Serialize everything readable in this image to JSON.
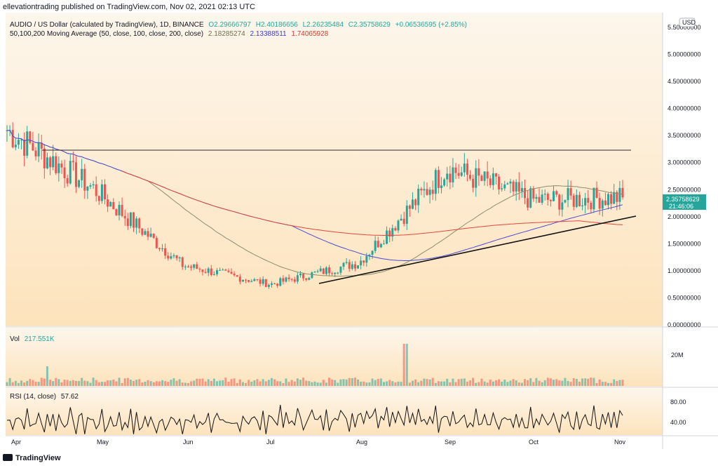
{
  "header": {
    "publisher": "ellevationtrading published on TradingView.com, Nov 02, 2021 02:13 UTC"
  },
  "price_legend": {
    "symbol": "AUDIO / US Dollar (calculated by TradingView), 1D, BINANCE",
    "open": "O2.29666797",
    "high": "H2.40186656",
    "low": "L2.26235484",
    "close": "C2.35758629",
    "change": "+0.06536595 (+2.85%)"
  },
  "ma_legend": {
    "label": "50,100,200 Moving Average (50, close, 100, close, 200, close)",
    "ma50": "2.18285274",
    "ma100": "2.13388511",
    "ma200": "1.74065928"
  },
  "currency_label": "USD",
  "last_price_tag": {
    "price": "2.35758629",
    "countdown": "21:46:06"
  },
  "volume_legend": {
    "label": "Vol",
    "value": "217.551K"
  },
  "rsi_legend": {
    "label": "RSI (14, close)",
    "value": "57.62"
  },
  "footer": {
    "brand": "TradingView"
  },
  "colors": {
    "up": "#26a69a",
    "down": "#ef5350",
    "ma50": "#8d8d6d",
    "ma100": "#4b4bd6",
    "ma200": "#e0463c",
    "background_gradient_top": "#fdf6ec",
    "background_gradient_bottom": "#fde3bc"
  },
  "chart_data": [
    {
      "type": "candlestick",
      "title": "AUDIO / US Dollar",
      "yaxis": {
        "ticks": [
          "5.50000000",
          "5.00000000",
          "4.50000000",
          "4.00000000",
          "3.50000000",
          "3.00000000",
          "2.50000000",
          "2.00000000",
          "1.50000000",
          "1.00000000",
          "0.50000000",
          "0.00000000"
        ],
        "ylim": [
          0,
          5.5
        ]
      },
      "xaxis": {
        "ticks": [
          "Apr",
          "May",
          "Jun",
          "Jul",
          "Aug",
          "Sep",
          "Oct",
          "Nov"
        ]
      },
      "monthly_closes_approx": [
        {
          "x": "Apr",
          "y": 3.6
        },
        {
          "x": "May",
          "y": 2.5
        },
        {
          "x": "Jun",
          "y": 1.1
        },
        {
          "x": "Jul",
          "y": 0.75
        },
        {
          "x": "Aug",
          "y": 1.15
        },
        {
          "x": "Sep",
          "y": 2.9
        },
        {
          "x": "Oct",
          "y": 2.3
        },
        {
          "x": "Nov",
          "y": 2.36
        }
      ],
      "last_close": 2.35758629,
      "annotations": {
        "resistance_line": {
          "from": "Apr",
          "to": "Nov",
          "y": 3.25
        },
        "support_trendline": {
          "from_x": "Jul",
          "from_y": 0.75,
          "to_x": "Nov",
          "to_y": 2.0
        }
      },
      "moving_averages": [
        {
          "name": "MA50",
          "last": 2.18285274
        },
        {
          "name": "MA100",
          "last": 2.13388511
        },
        {
          "name": "MA200",
          "last": 1.74065928
        }
      ],
      "grid": false
    },
    {
      "type": "bar",
      "title": "Vol",
      "yaxis": {
        "ticks": [
          "20M"
        ]
      },
      "last_value": "217.551K",
      "peak_month": "Aug"
    },
    {
      "type": "line",
      "title": "RSI (14, close)",
      "yaxis": {
        "ticks": [
          "80.00",
          "40.00"
        ]
      },
      "last_value": 57.62
    }
  ]
}
